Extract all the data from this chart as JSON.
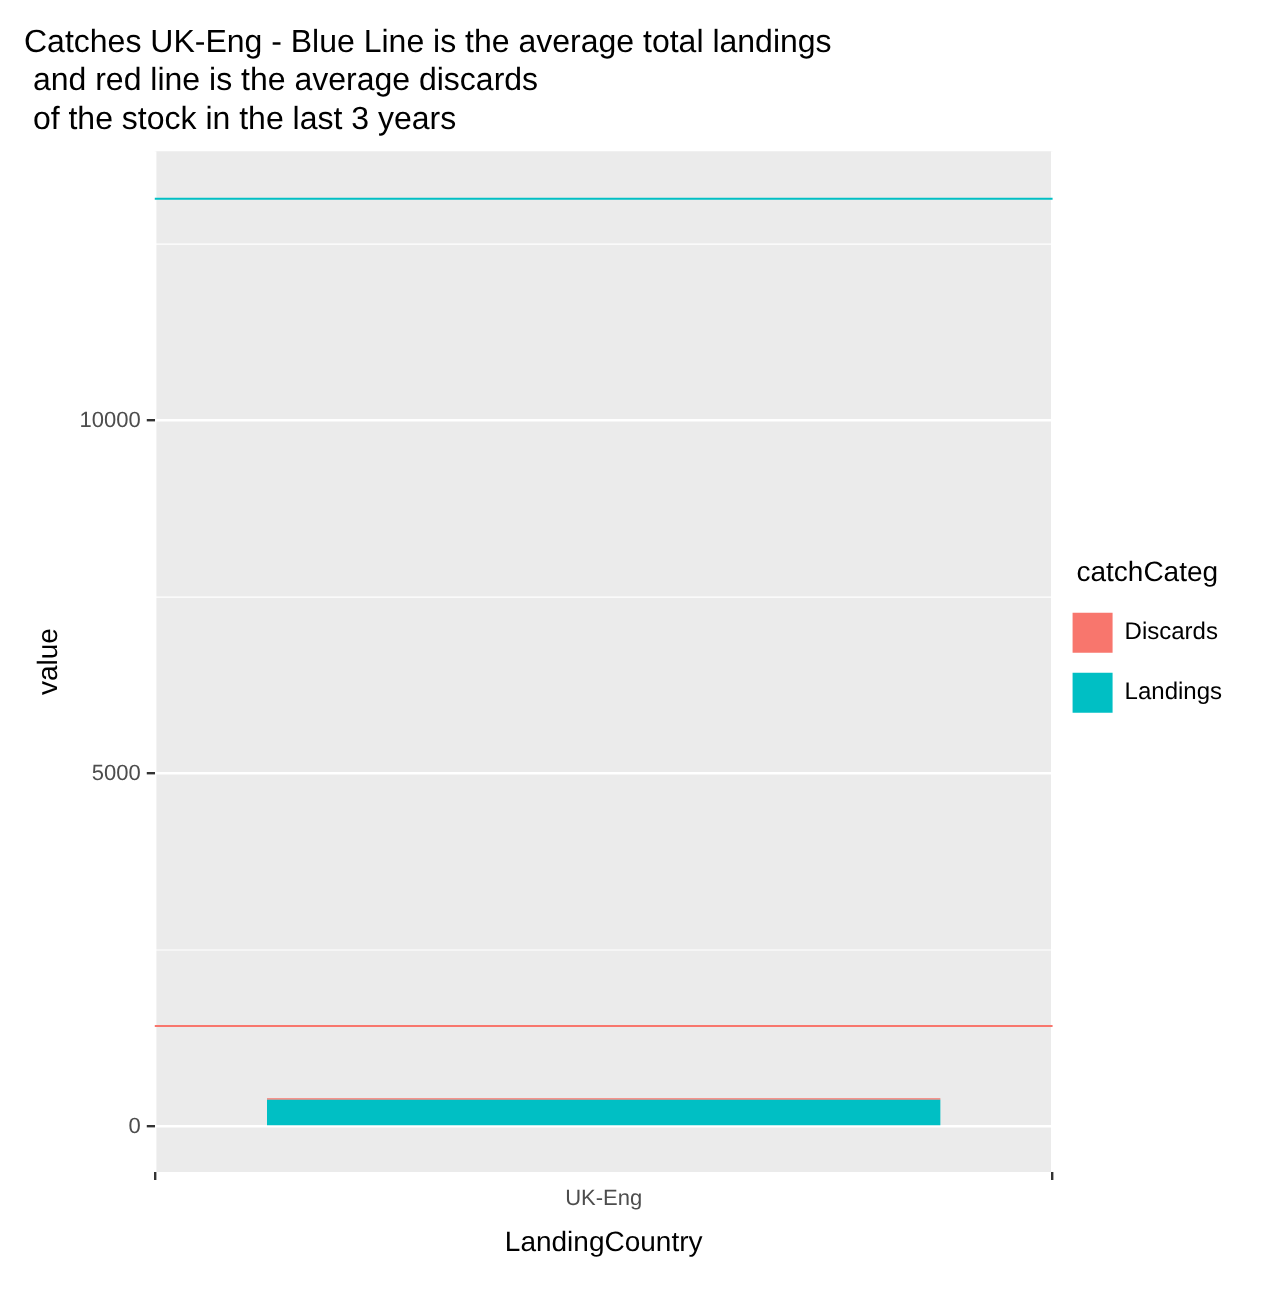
{
  "chart_data": {
    "type": "bar",
    "title": "Catches UK-Eng - Blue Line is the average total landings\n and red line is the average discards\n of the stock in the last 3 years",
    "xlabel": "LandingCountry",
    "ylabel": "value",
    "legend_title": "catchCateg",
    "categories": [
      "UK-Eng"
    ],
    "series": [
      {
        "name": "Landings",
        "color": "#00bfc4",
        "values": [
          380
        ]
      },
      {
        "name": "Discards",
        "color": "#f8766d",
        "values": [
          20
        ]
      }
    ],
    "stacked": true,
    "ylim": [
      -645,
      13817
    ],
    "yticks": [
      0,
      5000,
      10000
    ],
    "grid": true,
    "legend": "right",
    "ref_lines": [
      {
        "axis": "y",
        "value": 13145,
        "color": "#00bfc4"
      },
      {
        "axis": "y",
        "value": 1425,
        "color": "#f8766d"
      }
    ]
  }
}
